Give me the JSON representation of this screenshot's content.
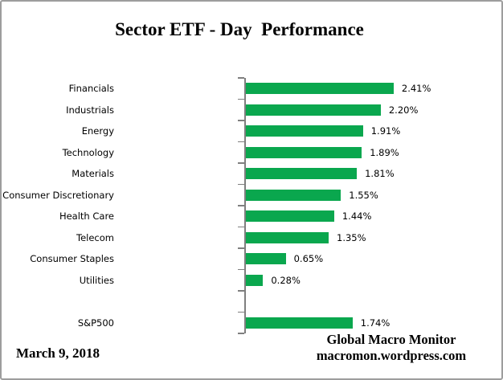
{
  "chart_data": {
    "type": "bar",
    "orientation": "horizontal",
    "title": "Sector ETF - Day  Performance",
    "xlabel": "",
    "ylabel": "",
    "grid": false,
    "legend": false,
    "data_labels": true,
    "bar_color": "#0AA74E",
    "axis_color": "#7F7F7F",
    "categories": [
      "Financials",
      "Industrials",
      "Energy",
      "Technology",
      "Materials",
      "Consumer Discretionary",
      "Health Care",
      "Telecom",
      "Consumer Staples",
      "Utilities",
      "",
      "S&P500"
    ],
    "values": [
      2.41,
      2.2,
      1.91,
      1.89,
      1.81,
      1.55,
      1.44,
      1.35,
      0.65,
      0.28,
      null,
      1.74
    ],
    "value_labels": [
      "2.41%",
      "2.20%",
      "1.91%",
      "1.89%",
      "1.81%",
      "1.55%",
      "1.44%",
      "1.35%",
      "0.65%",
      "0.28%",
      "",
      "1.74%"
    ]
  },
  "footer": {
    "date": "March 9, 2018",
    "source_line1": "Global Macro Monitor",
    "source_line2": "macromon.wordpress.com"
  }
}
